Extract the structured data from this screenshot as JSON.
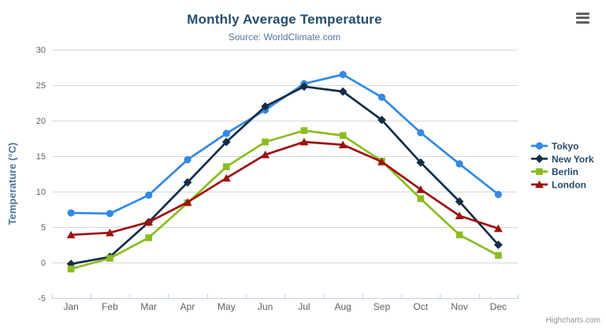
{
  "credit": "Highcharts.com",
  "export_menu": {
    "icon": "hamburger-icon"
  },
  "chart_data": {
    "type": "line",
    "title": "Monthly Average Temperature",
    "subtitle": "Source: WorldClimate.com",
    "xlabel": "",
    "ylabel": "Temperature (°C)",
    "categories": [
      "Jan",
      "Feb",
      "Mar",
      "Apr",
      "May",
      "Jun",
      "Jul",
      "Aug",
      "Sep",
      "Oct",
      "Nov",
      "Dec"
    ],
    "ylim": [
      -5,
      30
    ],
    "yticks": [
      -5,
      0,
      5,
      10,
      15,
      20,
      25,
      30
    ],
    "grid": true,
    "legend_position": "right",
    "series": [
      {
        "name": "Tokyo",
        "color": "#3389e3",
        "marker": "circle",
        "values": [
          7.0,
          6.9,
          9.5,
          14.5,
          18.2,
          21.5,
          25.2,
          26.5,
          23.3,
          18.3,
          13.9,
          9.6
        ]
      },
      {
        "name": "New York",
        "color": "#142c47",
        "marker": "diamond",
        "values": [
          -0.2,
          0.8,
          5.7,
          11.3,
          17.0,
          22.0,
          24.8,
          24.1,
          20.1,
          14.1,
          8.6,
          2.5
        ]
      },
      {
        "name": "Berlin",
        "color": "#8bbc21",
        "marker": "square",
        "values": [
          -0.9,
          0.6,
          3.5,
          8.4,
          13.5,
          17.0,
          18.6,
          17.9,
          14.3,
          9.0,
          3.9,
          1.0
        ]
      },
      {
        "name": "London",
        "color": "#9e1010",
        "marker": "triangle",
        "values": [
          3.9,
          4.2,
          5.7,
          8.5,
          11.9,
          15.2,
          17.0,
          16.6,
          14.2,
          10.3,
          6.6,
          4.8
        ]
      }
    ],
    "style": {
      "grid_color": "#d8d8d8",
      "axis_line_color": "#c0d0e0",
      "label_color": "#606060",
      "title_color": "#274b6d",
      "subtitle_color": "#54749c",
      "axis_title_color": "#4d759e",
      "legend_text_color": "#274b6d",
      "credit_color": "#909090"
    }
  }
}
